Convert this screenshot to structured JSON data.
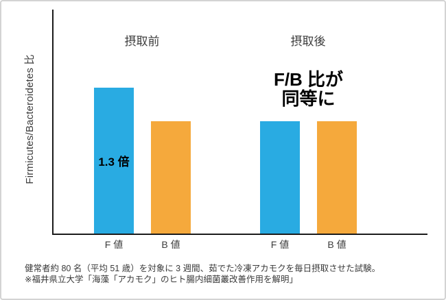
{
  "chart_data": {
    "type": "bar",
    "ylabel": "Firmicutes/Bacteroidetes 比",
    "ylim": [
      0,
      1.75
    ],
    "grid": false,
    "legend": false,
    "bar_colors": {
      "f_value": "#29abe2",
      "b_value": "#f5a93c"
    },
    "axis_color": "#1a1a1a",
    "groups": [
      {
        "label": "摂取前",
        "bars": [
          {
            "label": "F 値",
            "value": 1.3,
            "color": "#29abe2"
          },
          {
            "label": "B 値",
            "value": 1.0,
            "color": "#f5a93c"
          }
        ]
      },
      {
        "label": "摂取後",
        "bars": [
          {
            "label": "F 値",
            "value": 1.0,
            "color": "#29abe2"
          },
          {
            "label": "B 値",
            "value": 1.0,
            "color": "#f5a93c"
          }
        ]
      }
    ],
    "annotations": {
      "ratio_label": "1.3 倍",
      "equal_line1": "F/B 比が",
      "equal_line2": "同等に"
    }
  },
  "footer": {
    "line1": "健常者約 80 名（平均 51 歳）を対象に 3 週間、茹でた冷凍アカモクを毎日摂取させた試験。",
    "line2": "※福井県立大学「海藻「アカモク」のヒト腸内細菌叢改善作用を解明」"
  }
}
